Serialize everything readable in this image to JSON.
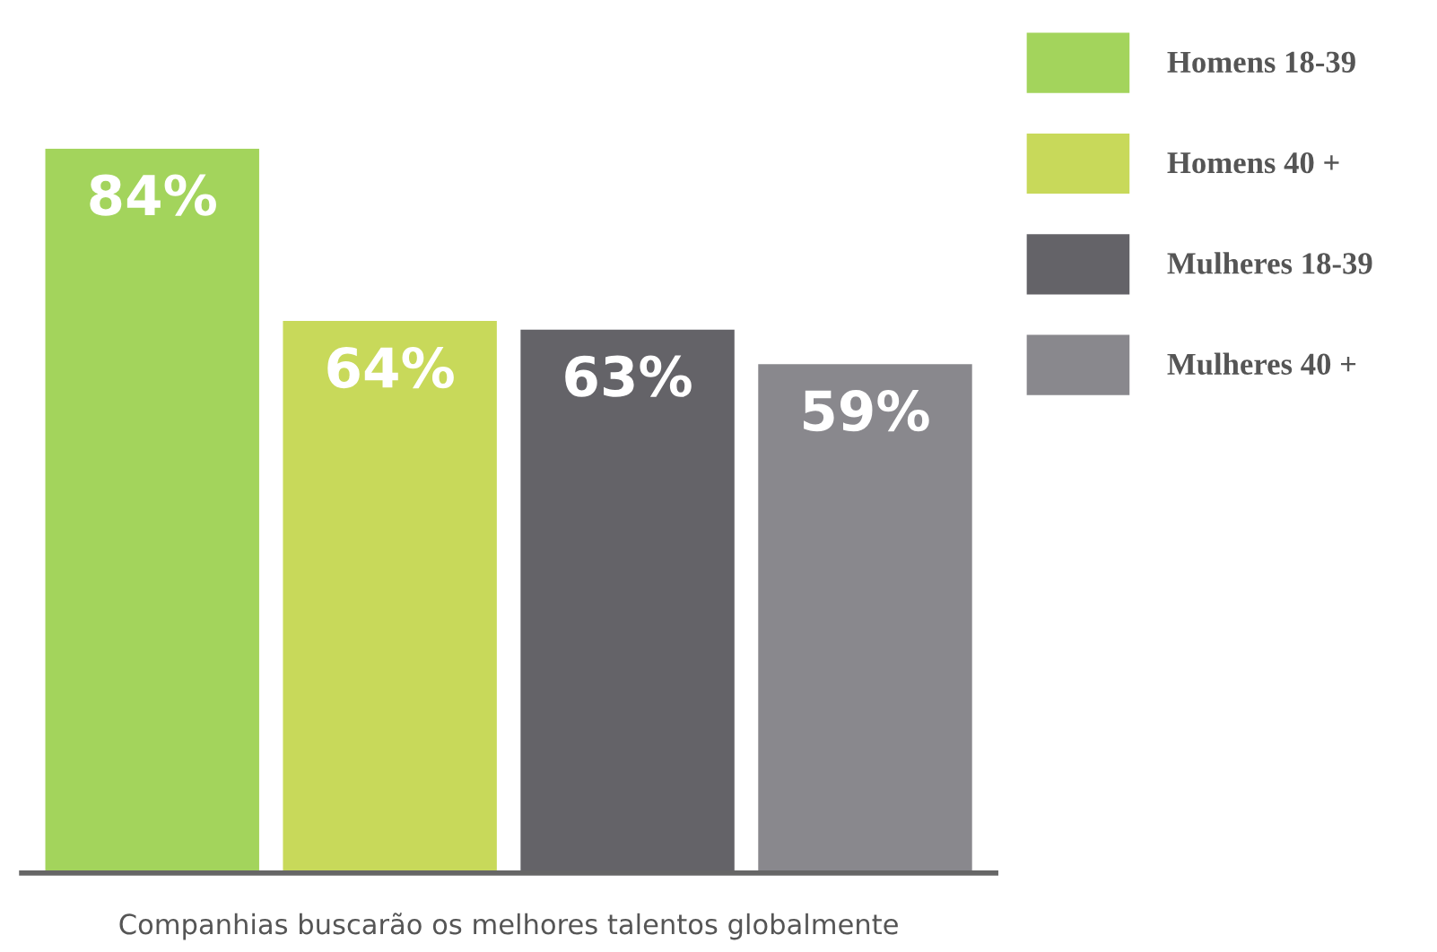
{
  "chart_data": {
    "type": "bar",
    "xlabel": "Companhias buscarão os melhores talentos globalmente",
    "categories": [
      null
    ],
    "series": [
      {
        "name": "Homens 18-39",
        "color": "#a3d45c",
        "values": [
          84
        ],
        "value_labels": [
          "84%"
        ]
      },
      {
        "name": "Homens 40 +",
        "color": "#c8d95a",
        "values": [
          64
        ],
        "value_labels": [
          "64%"
        ]
      },
      {
        "name": "Mulheres 18-39",
        "color": "#646368",
        "values": [
          63
        ],
        "value_labels": [
          "63%"
        ]
      },
      {
        "name": "Mulheres 40 +",
        "color": "#89888d",
        "values": [
          59
        ],
        "value_labels": [
          "59%"
        ]
      }
    ],
    "legend": "right"
  }
}
